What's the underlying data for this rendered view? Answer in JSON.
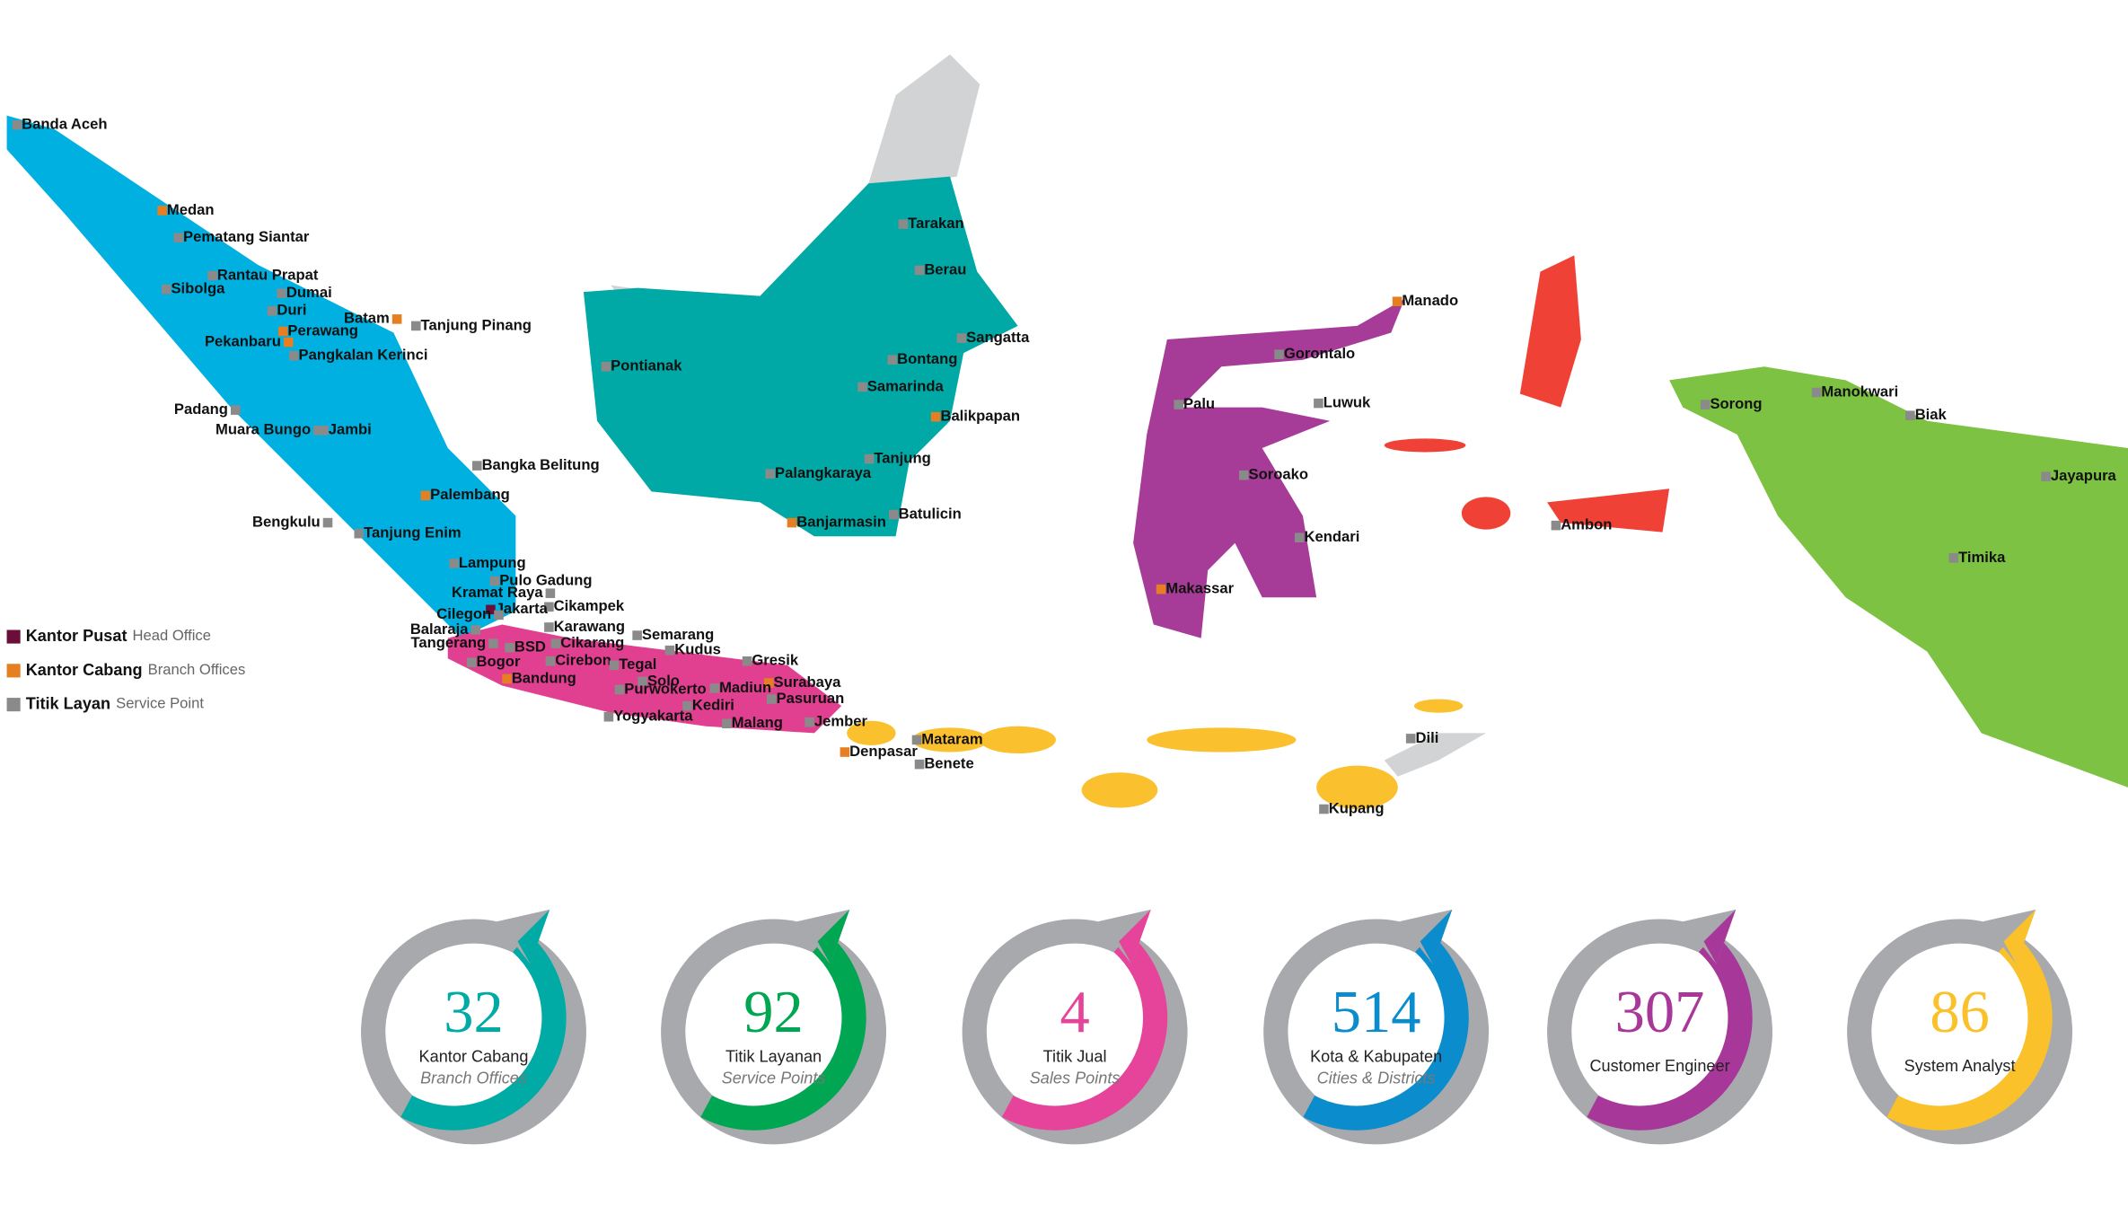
{
  "legend": [
    {
      "label": "Kantor Pusat",
      "sublabel": "Head Office",
      "color": "#6b0f3a"
    },
    {
      "label": "Kantor Cabang",
      "sublabel": "Branch Offices",
      "color": "#e67e22"
    },
    {
      "label": "Titik Layan",
      "sublabel": "Service Point",
      "color": "#8a8a8a"
    }
  ],
  "cities": [
    "Banda Aceh",
    "Medan",
    "Pematang Siantar",
    "Rantau Prapat",
    "Sibolga",
    "Dumai",
    "Duri",
    "Batam",
    "Tanjung Pinang",
    "Perawang",
    "Pekanbaru",
    "Pangkalan Kerinci",
    "Padang",
    "Muara Bungo",
    "Jambi",
    "Bangka Belitung",
    "Palembang",
    "Bengkulu",
    "Tanjung Enim",
    "Lampung",
    "Pulo Gadung",
    "Kramat Raya",
    "Cikampek",
    "Jakarta",
    "Cilegon",
    "Karawang",
    "Balaraja",
    "Tangerang",
    "Cikarang",
    "BSD",
    "Bogor",
    "Cirebon",
    "Tegal",
    "Semarang",
    "Kudus",
    "Gresik",
    "Bandung",
    "Solo",
    "Surabaya",
    "Purwokerto",
    "Madiun",
    "Pasuruan",
    "Kediri",
    "Yogyakarta",
    "Jember",
    "Malang",
    "Mataram",
    "Denpasar",
    "Benete",
    "Pontianak",
    "Tarakan",
    "Berau",
    "Sangatta",
    "Bontang",
    "Samarinda",
    "Balikpapan",
    "Palangkaraya",
    "Tanjung",
    "Banjarmasin",
    "Batulicin",
    "Manado",
    "Gorontalo",
    "Palu",
    "Luwuk",
    "Soroako",
    "Kendari",
    "Makassar",
    "Ambon",
    "Sorong",
    "Manokwari",
    "Biak",
    "Jayapura",
    "Timika",
    "Dili",
    "Kupang"
  ],
  "stats": [
    {
      "value": 32,
      "label": "Kantor Cabang",
      "sublabel": "Branch Offices",
      "color": "#00aba5"
    },
    {
      "value": 92,
      "label": "Titik Layanan",
      "sublabel": "Service Points",
      "color": "#00a651"
    },
    {
      "value": 4,
      "label": "Titik Jual",
      "sublabel": "Sales Points",
      "color": "#e6449a"
    },
    {
      "value": 514,
      "label": "Kota & Kabupaten",
      "sublabel": "Cities & Districts",
      "color": "#0a8ccd"
    },
    {
      "value": 307,
      "label": "Customer Engineer",
      "color": "#a8379a"
    },
    {
      "value": 86,
      "label": "System Analyst",
      "color": "#fbc12b"
    }
  ]
}
